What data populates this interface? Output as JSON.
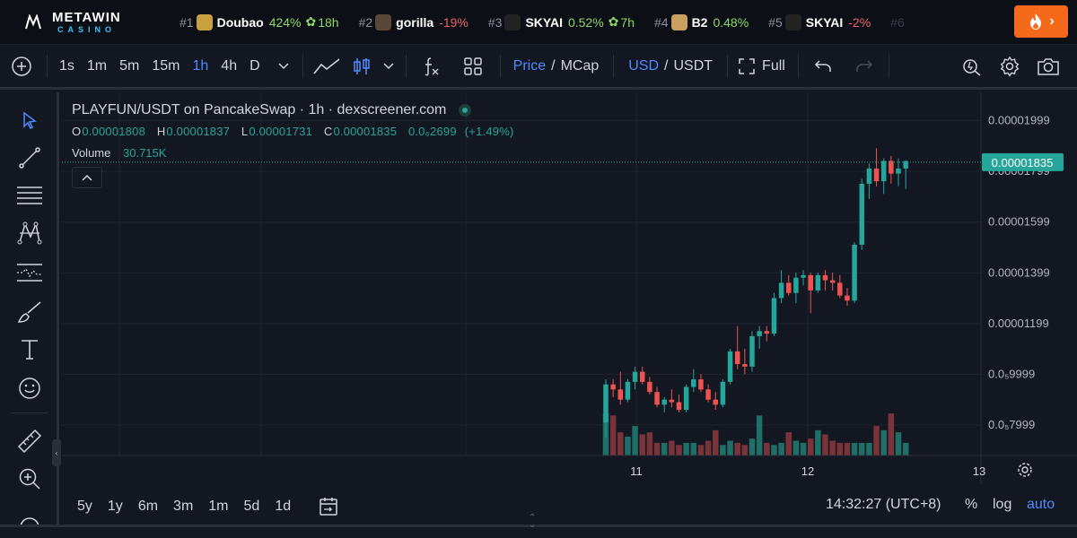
{
  "ticker": {
    "brand_top": "METAWIN",
    "brand_bottom": "CASINO",
    "items": [
      {
        "rank": "#1",
        "name": "Doubao",
        "change": "424%",
        "dir": "up",
        "age": "18h",
        "color": "#c9a040"
      },
      {
        "rank": "#2",
        "name": "gorilla",
        "change": "-19%",
        "dir": "down",
        "age": "",
        "color": "#5a4636"
      },
      {
        "rank": "#3",
        "name": "SKYAI",
        "change": "0.52%",
        "dir": "up",
        "age": "7h",
        "color": "#222222"
      },
      {
        "rank": "#4",
        "name": "B2",
        "change": "0.48%",
        "dir": "up",
        "age": "",
        "color": "#c8a060"
      },
      {
        "rank": "#5",
        "name": "SKYAI",
        "change": "-2%",
        "dir": "down",
        "age": "",
        "color": "#222222"
      }
    ],
    "more": "#6"
  },
  "toolbar": {
    "intervals": [
      "1s",
      "1m",
      "5m",
      "15m",
      "1h",
      "4h",
      "D"
    ],
    "active_interval": "1h",
    "price": "Price",
    "mcap": "MCap",
    "usd": "USD",
    "usdt": "USDT",
    "full": "Full"
  },
  "legend": {
    "title": "PLAYFUN/USDT on PancakeSwap · 1h · dexscreener.com",
    "o_label": "O",
    "o": "0.00001808",
    "h_label": "H",
    "h": "0.00001837",
    "l_label": "L",
    "l": "0.00001731",
    "c_label": "C",
    "c": "0.00001835",
    "change": "0.0₆2699",
    "change_pct": "(+1.49%)",
    "volume_label": "Volume",
    "volume": "30.715K"
  },
  "chart_data": {
    "type": "candlestick",
    "y_ticks": [
      "0.00001999",
      "0.00001799",
      "0.00001599",
      "0.00001399",
      "0.00001199",
      "0.0₅9999",
      "0.0₅7999"
    ],
    "y_tick_values": [
      1.999e-05,
      1.799e-05,
      1.599e-05,
      1.399e-05,
      1.199e-05,
      9.999e-06,
      7.999e-06
    ],
    "x_ticks": [
      "11",
      "12",
      "13"
    ],
    "last_price": "0.00001835",
    "last_price_value": 1.835e-05,
    "ylim": [
      6.8e-06,
      2.11e-05
    ],
    "grid": true,
    "candles": [
      [
        8.1e-06,
        9.8e-06,
        7.5e-06,
        9.6e-06
      ],
      [
        9.6e-06,
        9.8e-06,
        9.1e-06,
        9.4e-06
      ],
      [
        9.4e-06,
        1.01e-05,
        8.8e-06,
        9e-06
      ],
      [
        9e-06,
        9.8e-06,
        8.9e-06,
        9.7e-06
      ],
      [
        9.7e-06,
        1.03e-05,
        9.4e-06,
        1.01e-05
      ],
      [
        1.01e-05,
        1.03e-05,
        9.6e-06,
        9.7e-06
      ],
      [
        9.7e-06,
        9.9e-06,
        9.2e-06,
        9.3e-06
      ],
      [
        9.3e-06,
        9.5e-06,
        8.7e-06,
        8.8e-06
      ],
      [
        8.8e-06,
        9.1e-06,
        8.5e-06,
        9e-06
      ],
      [
        9e-06,
        9.4e-06,
        8.7e-06,
        8.9e-06
      ],
      [
        8.9e-06,
        9.2e-06,
        8.5e-06,
        8.6e-06
      ],
      [
        8.6e-06,
        9.6e-06,
        8.5e-06,
        9.5e-06
      ],
      [
        9.5e-06,
        1.02e-05,
        9.3e-06,
        9.8e-06
      ],
      [
        9.8e-06,
        1e-05,
        9.3e-06,
        9.4e-06
      ],
      [
        9.4e-06,
        9.6e-06,
        8.9e-06,
        9e-06
      ],
      [
        9e-06,
        9.3e-06,
        8.6e-06,
        8.8e-06
      ],
      [
        8.8e-06,
        9.8e-06,
        8.7e-06,
        9.7e-06
      ],
      [
        9.7e-06,
        1.1e-05,
        9.6e-06,
        1.09e-05
      ],
      [
        1.09e-05,
        1.19e-05,
        1.02e-05,
        1.04e-05
      ],
      [
        1.04e-05,
        1.1e-05,
        1e-05,
        1.03e-05
      ],
      [
        1.03e-05,
        1.17e-05,
        1.01e-05,
        1.15e-05
      ],
      [
        1.15e-05,
        1.19e-05,
        1.1e-05,
        1.17e-05
      ],
      [
        1.17e-05,
        1.19e-05,
        1.13e-05,
        1.16e-05
      ],
      [
        1.16e-05,
        1.32e-05,
        1.15e-05,
        1.3e-05
      ],
      [
        1.3e-05,
        1.41e-05,
        1.28e-05,
        1.36e-05
      ],
      [
        1.36e-05,
        1.39e-05,
        1.31e-05,
        1.32e-05
      ],
      [
        1.32e-05,
        1.4e-05,
        1.28e-05,
        1.38e-05
      ],
      [
        1.38e-05,
        1.41e-05,
        1.35e-05,
        1.39e-05
      ],
      [
        1.39e-05,
        1.4e-05,
        1.24e-05,
        1.33e-05
      ],
      [
        1.33e-05,
        1.4e-05,
        1.32e-05,
        1.39e-05
      ],
      [
        1.39e-05,
        1.41e-05,
        1.33e-05,
        1.37e-05
      ],
      [
        1.37e-05,
        1.4e-05,
        1.33e-05,
        1.36e-05
      ],
      [
        1.36e-05,
        1.39e-05,
        1.3e-05,
        1.31e-05
      ],
      [
        1.31e-05,
        1.34e-05,
        1.27e-05,
        1.29e-05
      ],
      [
        1.29e-05,
        1.52e-05,
        1.28e-05,
        1.51e-05
      ],
      [
        1.51e-05,
        1.77e-05,
        1.49e-05,
        1.75e-05
      ],
      [
        1.75e-05,
        1.83e-05,
        1.69e-05,
        1.81e-05
      ],
      [
        1.81e-05,
        1.89e-05,
        1.74e-05,
        1.76e-05
      ],
      [
        1.76e-05,
        1.85e-05,
        1.71e-05,
        1.84e-05
      ],
      [
        1.84e-05,
        1.86e-05,
        1.75e-05,
        1.79e-05
      ],
      [
        1.79e-05,
        1.85e-05,
        1.74e-05,
        1.81e-05
      ],
      [
        1.81e-05,
        1.84e-05,
        1.73e-05,
        1.84e-05
      ]
    ],
    "volumes": [
      1.0,
      0.95,
      0.55,
      0.45,
      0.7,
      0.5,
      0.55,
      0.3,
      0.3,
      0.35,
      0.25,
      0.3,
      0.3,
      0.25,
      0.35,
      0.6,
      0.25,
      0.35,
      0.3,
      0.25,
      0.4,
      0.95,
      0.3,
      0.25,
      0.3,
      0.55,
      0.35,
      0.3,
      0.4,
      0.6,
      0.5,
      0.35,
      0.3,
      0.3,
      0.3,
      0.3,
      0.3,
      0.7,
      0.6,
      1.0,
      0.55,
      0.3
    ]
  },
  "bottombar": {
    "ranges": [
      "5y",
      "1y",
      "6m",
      "3m",
      "1m",
      "5d",
      "1d"
    ],
    "clock": "14:32:27 (UTC+8)",
    "pct": "%",
    "log": "log",
    "auto": "auto"
  },
  "colors": {
    "up": "#26a69a",
    "down": "#ef5350",
    "bg": "#131722",
    "accent": "#4f8bff",
    "price_tag": "#26a69a"
  },
  "icons": {
    "toolbar": [
      "add-indicator-icon",
      "line-chart-icon",
      "candles-icon",
      "fx-icon",
      "layout-grid-icon",
      "fullscreen-icon",
      "undo-icon",
      "redo-icon",
      "quick-search-icon",
      "settings-icon",
      "camera-icon"
    ],
    "left": [
      "cursor-icon",
      "trendline-icon",
      "fib-lines-icon",
      "pattern-icon",
      "prediction-icon",
      "brush-icon",
      "text-icon",
      "emoji-icon",
      "ruler-icon",
      "zoom-in-icon"
    ]
  }
}
